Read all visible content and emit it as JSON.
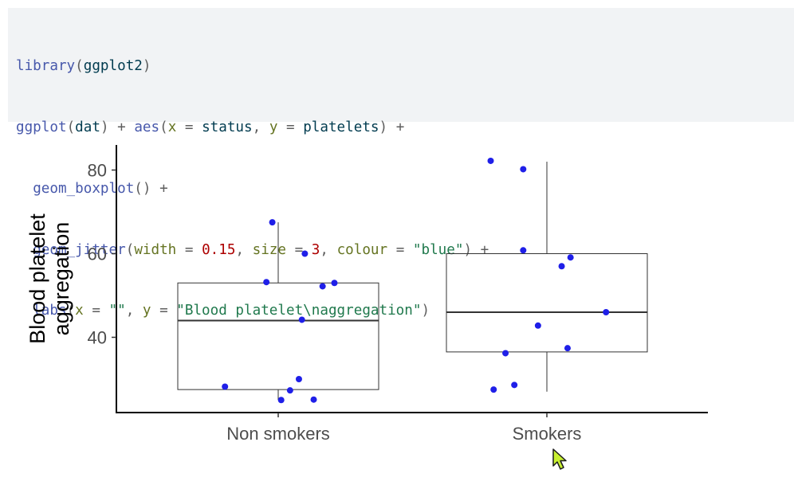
{
  "code": {
    "line1": {
      "fn": "library",
      "open": "(",
      "arg": "ggplot2",
      "close": ")"
    },
    "line2": {
      "fn": "ggplot",
      "p1": "(",
      "a1": "dat",
      "p2": ") ",
      "plus": "+ ",
      "fn2": "aes",
      "p3": "(",
      "k1": "x",
      "eq1": " = ",
      "v1": "status",
      "c1": ", ",
      "k2": "y",
      "eq2": " = ",
      "v2": "platelets",
      "p4": ") ",
      "plus2": "+"
    },
    "line3": {
      "indent": "  ",
      "fn": "geom_boxplot",
      "paren": "() ",
      "plus": "+"
    },
    "line4": {
      "indent": "  ",
      "fn": "geom_jitter",
      "p1": "(",
      "k1": "width",
      "eq1": " = ",
      "n1": "0.15",
      "c1": ", ",
      "k2": "size",
      "eq2": " = ",
      "n2": "3",
      "c2": ", ",
      "k3": "colour",
      "eq3": " = ",
      "s3": "\"blue\"",
      "p2": ") ",
      "plus": "+"
    },
    "line5": {
      "indent": "  ",
      "fn": "labs",
      "p1": "(",
      "k1": "x",
      "eq1": " = ",
      "s1": "\"\"",
      "c1": ", ",
      "k2": "y",
      "eq2": " = ",
      "s2": "\"Blood platelet\\naggregation\"",
      "p2": ")"
    }
  },
  "colors": {
    "points": "#1f1fe8",
    "box_line": "#333333",
    "axis": "#000000",
    "code_bg": "#f1f3f5"
  },
  "cursor_icon": "mouse-pointer-icon",
  "chart_data": {
    "type": "boxplot",
    "categories": [
      "Non smokers",
      "Smokers"
    ],
    "ylabel": "Blood platelet\naggregation",
    "xlabel": "",
    "ylim": [
      22,
      86
    ],
    "yticks": [
      40,
      60,
      80
    ],
    "yticklabels": [
      "40",
      "60",
      "80"
    ],
    "boxes": [
      {
        "category": "Non smokers",
        "lower_whisker": 25,
        "q1": 27.5,
        "median": 44,
        "q3": 53,
        "upper_whisker": 67.5
      },
      {
        "category": "Smokers",
        "lower_whisker": 27,
        "q1": 36.5,
        "median": 46,
        "q3": 60,
        "upper_whisker": 82
      }
    ],
    "points": [
      {
        "category": "Non smokers",
        "jitter": -0.02,
        "y": 67.5
      },
      {
        "category": "Non smokers",
        "jitter": 0.09,
        "y": 60
      },
      {
        "category": "Non smokers",
        "jitter": -0.04,
        "y": 53.2
      },
      {
        "category": "Non smokers",
        "jitter": 0.15,
        "y": 52.2
      },
      {
        "category": "Non smokers",
        "jitter": 0.19,
        "y": 53
      },
      {
        "category": "Non smokers",
        "jitter": 0.08,
        "y": 44.2
      },
      {
        "category": "Non smokers",
        "jitter": -0.18,
        "y": 28.2
      },
      {
        "category": "Non smokers",
        "jitter": 0.07,
        "y": 30
      },
      {
        "category": "Non smokers",
        "jitter": 0.04,
        "y": 27.3
      },
      {
        "category": "Non smokers",
        "jitter": 0.01,
        "y": 25
      },
      {
        "category": "Non smokers",
        "jitter": 0.12,
        "y": 25.1
      },
      {
        "category": "Smokers",
        "jitter": -0.19,
        "y": 82.2
      },
      {
        "category": "Smokers",
        "jitter": -0.08,
        "y": 80.2
      },
      {
        "category": "Smokers",
        "jitter": -0.08,
        "y": 60.8
      },
      {
        "category": "Smokers",
        "jitter": 0.05,
        "y": 57
      },
      {
        "category": "Smokers",
        "jitter": 0.08,
        "y": 59.1
      },
      {
        "category": "Smokers",
        "jitter": 0.2,
        "y": 46
      },
      {
        "category": "Smokers",
        "jitter": -0.03,
        "y": 42.8
      },
      {
        "category": "Smokers",
        "jitter": -0.14,
        "y": 36.2
      },
      {
        "category": "Smokers",
        "jitter": 0.07,
        "y": 37.4
      },
      {
        "category": "Smokers",
        "jitter": -0.11,
        "y": 28.6
      },
      {
        "category": "Smokers",
        "jitter": -0.18,
        "y": 27.5
      }
    ]
  }
}
